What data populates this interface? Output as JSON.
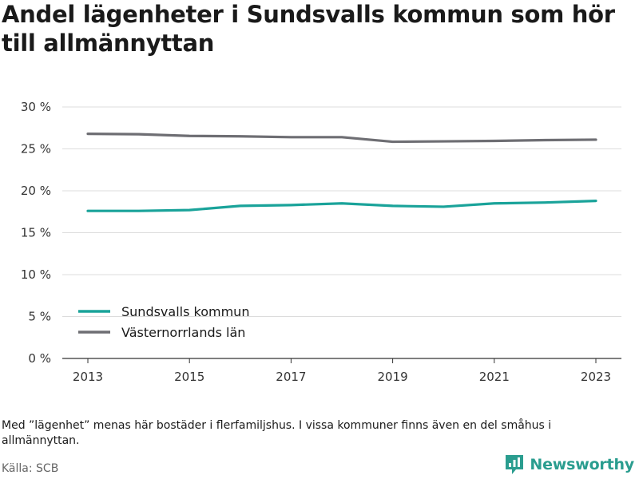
{
  "title": "Andel lägenheter i Sundsvalls kommun som hör till allmännyttan",
  "note": "Med ”lägenhet” menas här bostäder i flerfamiljshus. I vissa kommuner finns även en del småhus i allmännyttan.",
  "source": "Källa: SCB",
  "brand": {
    "name": "Newsworthy",
    "icon": "newsworthy-logo-icon",
    "color": "#2a9d8f"
  },
  "chart_data": {
    "type": "line",
    "title": "Andel lägenheter i Sundsvalls kommun som hör till allmännyttan",
    "xlabel": "",
    "ylabel": "",
    "x": [
      2013,
      2014,
      2015,
      2016,
      2017,
      2018,
      2019,
      2020,
      2021,
      2022,
      2023
    ],
    "x_ticks": [
      "2013",
      "2015",
      "2017",
      "2019",
      "2021",
      "2023"
    ],
    "y_ticks": [
      "0 %",
      "5 %",
      "10 %",
      "15 %",
      "20 %",
      "25 %",
      "30 %"
    ],
    "ylim": [
      0,
      30
    ],
    "grid": true,
    "legend_position": "bottom-left",
    "series": [
      {
        "name": "Sundsvalls kommun",
        "color": "#1aa39a",
        "values": [
          17.6,
          17.6,
          17.7,
          18.2,
          18.3,
          18.5,
          18.2,
          18.1,
          18.5,
          18.6,
          18.8
        ]
      },
      {
        "name": "Västernorrlands län",
        "color": "#6e6e73",
        "values": [
          26.8,
          26.75,
          26.55,
          26.5,
          26.4,
          26.4,
          25.85,
          25.9,
          25.95,
          26.05,
          26.1
        ]
      }
    ]
  }
}
